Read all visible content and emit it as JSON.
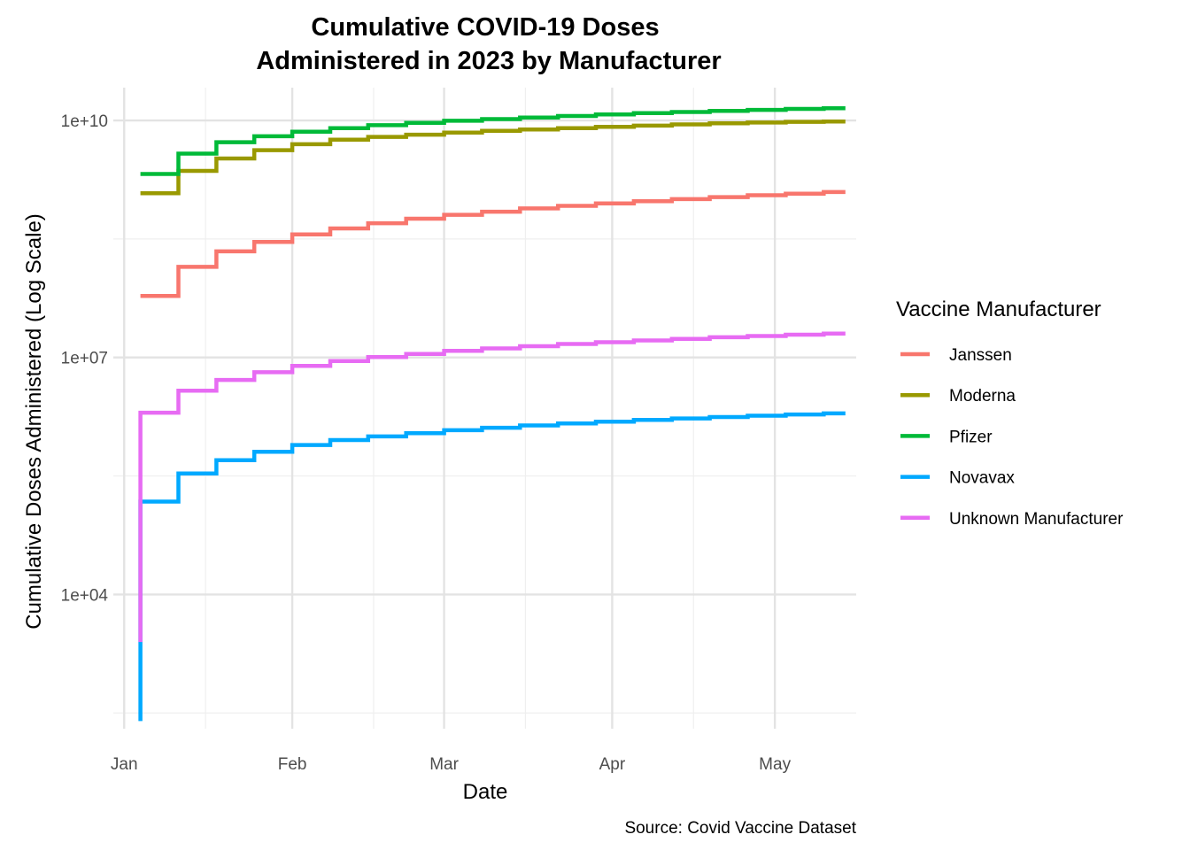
{
  "chart_data": {
    "type": "line",
    "step": true,
    "title_lines": [
      "Cumulative COVID-19 Doses",
      "Administered in 2023 by Manufacturer"
    ],
    "xlabel": "Date",
    "ylabel": "Cumulative Doses Administered (Log Scale)",
    "caption": "Source: Covid Vaccine Dataset",
    "y_scale": "log10",
    "ylim": [
      200,
      26000000000
    ],
    "xlim": [
      "2022-12-30",
      "2023-05-16"
    ],
    "x_ticks": [
      {
        "date": "2023-01-01",
        "label": "Jan"
      },
      {
        "date": "2023-02-01",
        "label": "Feb"
      },
      {
        "date": "2023-03-01",
        "label": "Mar"
      },
      {
        "date": "2023-04-01",
        "label": "Apr"
      },
      {
        "date": "2023-05-01",
        "label": "May"
      }
    ],
    "x_minor_ticks": [
      "2023-01-16",
      "2023-02-16",
      "2023-03-16",
      "2023-04-16"
    ],
    "y_ticks": [
      {
        "value": 10000,
        "label": "1e+04"
      },
      {
        "value": 10000000,
        "label": "1e+07"
      },
      {
        "value": 10000000000,
        "label": "1e+10"
      }
    ],
    "y_minor_ticks": [
      316,
      316228,
      316227766
    ],
    "grid": true,
    "legend": {
      "title": "Vaccine Manufacturer",
      "position": "right"
    },
    "x": [
      "2023-01-04",
      "2023-01-11",
      "2023-01-18",
      "2023-01-25",
      "2023-02-01",
      "2023-02-08",
      "2023-02-15",
      "2023-02-22",
      "2023-03-01",
      "2023-03-08",
      "2023-03-15",
      "2023-03-22",
      "2023-03-29",
      "2023-04-05",
      "2023-04-12",
      "2023-04-19",
      "2023-04-26",
      "2023-05-03",
      "2023-05-10"
    ],
    "series": [
      {
        "name": "Janssen",
        "color": "#F8766D",
        "start": 60000000,
        "values": [
          60000000,
          140000000,
          220000000,
          290000000,
          360000000,
          430000000,
          500000000,
          570000000,
          640000000,
          700000000,
          770000000,
          830000000,
          890000000,
          950000000,
          1010000000,
          1070000000,
          1130000000,
          1180000000,
          1240000000
        ]
      },
      {
        "name": "Moderna",
        "color": "#999900",
        "start": 1200000000,
        "values": [
          1200000000,
          2300000000,
          3300000000,
          4200000000,
          5000000000,
          5700000000,
          6200000000,
          6600000000,
          7000000000,
          7400000000,
          7700000000,
          8000000000,
          8300000000,
          8600000000,
          8900000000,
          9200000000,
          9400000000,
          9600000000,
          9700000000
        ]
      },
      {
        "name": "Pfizer",
        "color": "#00BA38",
        "start": 2100000000,
        "values": [
          2100000000,
          3800000000,
          5300000000,
          6300000000,
          7200000000,
          8000000000,
          8700000000,
          9300000000,
          9900000000,
          10400000000,
          10900000000,
          11400000000,
          11900000000,
          12400000000,
          12800000000,
          13200000000,
          13600000000,
          14000000000,
          14300000000
        ]
      },
      {
        "name": "Novavax",
        "color": "#00A9FF",
        "start": 250,
        "values": [
          150000,
          340000,
          500000,
          640000,
          780000,
          900000,
          1000000,
          1100000,
          1200000,
          1290000,
          1380000,
          1460000,
          1540000,
          1620000,
          1690000,
          1760000,
          1830000,
          1900000,
          1960000
        ]
      },
      {
        "name": "Unknown Manufacturer",
        "color": "#E76BF3",
        "start": 2500,
        "values": [
          2000000,
          3800000,
          5200000,
          6500000,
          7800000,
          9000000,
          10100000,
          11100000,
          12100000,
          13000000,
          13900000,
          14800000,
          15600000,
          16400000,
          17200000,
          18000000,
          18700000,
          19400000,
          20100000
        ]
      }
    ]
  }
}
